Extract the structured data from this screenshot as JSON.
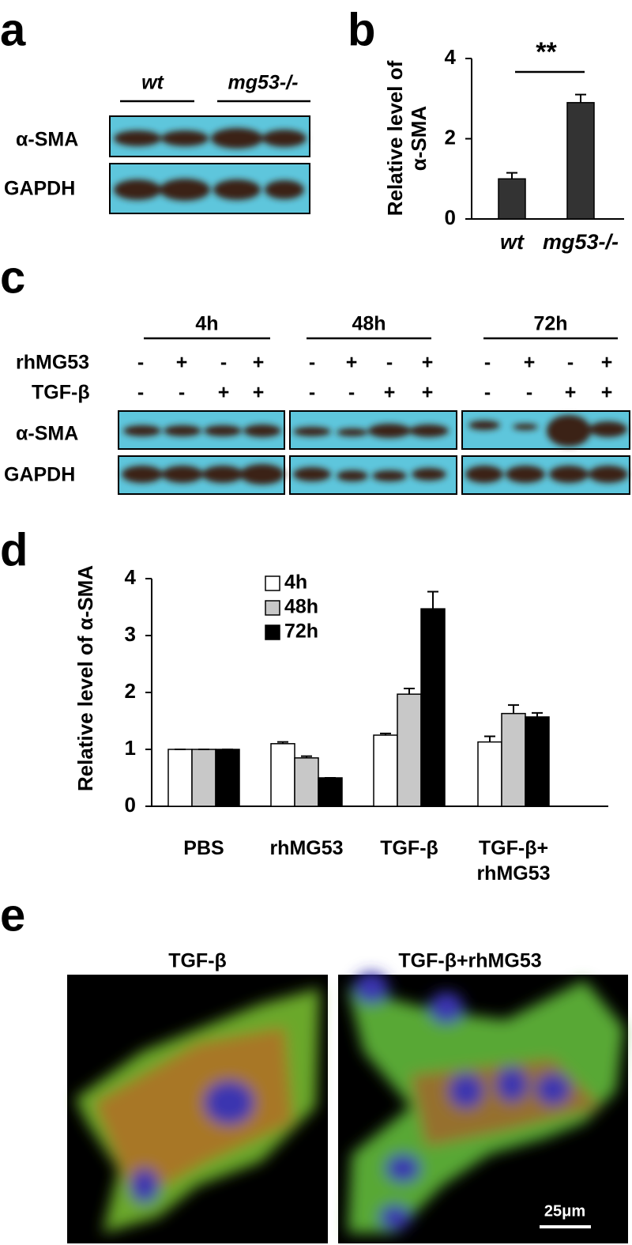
{
  "panel_labels": [
    "a",
    "b",
    "c",
    "d",
    "e"
  ],
  "panel_a": {
    "columns": [
      "wt",
      "mg53-/-"
    ],
    "rows": [
      "α-SMA",
      "GAPDH"
    ]
  },
  "panel_c": {
    "time_points": [
      "4h",
      "48h",
      "72h"
    ],
    "treatments": [
      {
        "name": "rhMG53",
        "signs": [
          "-",
          "+",
          "-",
          "+",
          "-",
          "+",
          "-",
          "+",
          "-",
          "+",
          "-",
          "+"
        ]
      },
      {
        "name": "TGF-β",
        "signs": [
          "-",
          "-",
          "+",
          "+",
          "-",
          "-",
          "+",
          "+",
          "-",
          "-",
          "+",
          "+"
        ]
      }
    ],
    "rows": [
      "α-SMA",
      "GAPDH"
    ]
  },
  "chart_data": [
    {
      "type": "bar",
      "ylabel": "Relative level of α-SMA",
      "categories": [
        "wt",
        "mg53-/-"
      ],
      "values": [
        1.0,
        2.9
      ],
      "errors": [
        0.15,
        0.2
      ],
      "color": "#333333",
      "ylim": [
        0,
        4
      ],
      "yticks": [
        0,
        2,
        4
      ],
      "annotation": "**"
    },
    {
      "type": "bar",
      "ylabel": "Relative level of α-SMA",
      "categories": [
        "PBS",
        "rhMG53",
        "TGF-β",
        "TGF-β+ rhMG53"
      ],
      "series": [
        {
          "name": "4h",
          "color": "#ffffff",
          "values": [
            1.0,
            1.1,
            1.25,
            1.13
          ],
          "errors": [
            0,
            0.03,
            0.03,
            0.1
          ]
        },
        {
          "name": "48h",
          "color": "#c8c8c8",
          "values": [
            1.0,
            0.85,
            1.97,
            1.63
          ],
          "errors": [
            0,
            0.03,
            0.1,
            0.15
          ]
        },
        {
          "name": "72h",
          "color": "#000000",
          "values": [
            1.0,
            0.5,
            3.47,
            1.57
          ],
          "errors": [
            0,
            0,
            0.3,
            0.07
          ]
        }
      ],
      "ylim": [
        0,
        4
      ],
      "yticks": [
        0,
        1,
        2,
        3,
        4
      ]
    }
  ],
  "panel_e": {
    "titles": [
      "TGF-β",
      "TGF-β+rhMG53"
    ],
    "scale_bar": "25μm"
  }
}
